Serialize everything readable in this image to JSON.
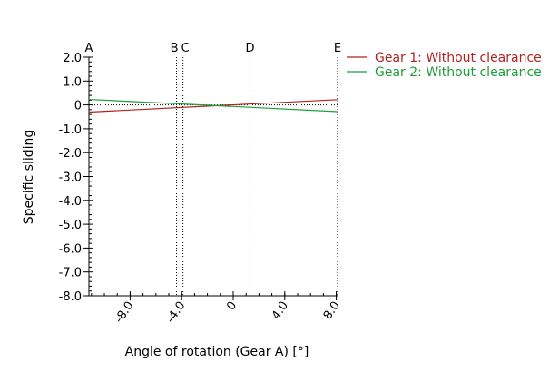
{
  "chart_data": {
    "type": "line",
    "title": "",
    "xlabel": "Angle of rotation (Gear A) [°]",
    "ylabel": "Specific sliding",
    "xlim": [
      -11.2,
      8.1
    ],
    "ylim": [
      -8.0,
      2.0
    ],
    "x_ticks": [
      -8.0,
      -4.0,
      0,
      4.0,
      8.0
    ],
    "x_tick_labels": [
      "-8.0",
      "-4.0",
      "0",
      "4.0",
      "8.0"
    ],
    "x_minor_step": 1.0,
    "y_ticks": [
      2.0,
      1.0,
      0,
      -1.0,
      -2.0,
      -3.0,
      -4.0,
      -5.0,
      -6.0,
      -7.0,
      -8.0
    ],
    "y_tick_labels": [
      "2.0",
      "1.0",
      "0",
      "-1.0",
      "-2.0",
      "-3.0",
      "-4.0",
      "-5.0",
      "-6.0",
      "-7.0",
      "-8.0"
    ],
    "y_minor_step": 0.2,
    "series": [
      {
        "name": "Gear 1: Without clearance",
        "color": "#b22222",
        "x": [
          -11.2,
          8.1
        ],
        "y": [
          -0.3,
          0.22
        ]
      },
      {
        "name": "Gear 2: Without clearance",
        "color": "#1f9e3a",
        "x": [
          -11.2,
          8.1
        ],
        "y": [
          0.23,
          -0.28
        ]
      }
    ],
    "reference_lines": [
      {
        "label": "A",
        "x": -11.2
      },
      {
        "label": "B",
        "x": -4.4
      },
      {
        "label": "C",
        "x": -3.9
      },
      {
        "label": "D",
        "x": 1.3
      },
      {
        "label": "E",
        "x": 8.1
      }
    ],
    "zero_line": true,
    "legend_position": "right",
    "grid": false
  }
}
